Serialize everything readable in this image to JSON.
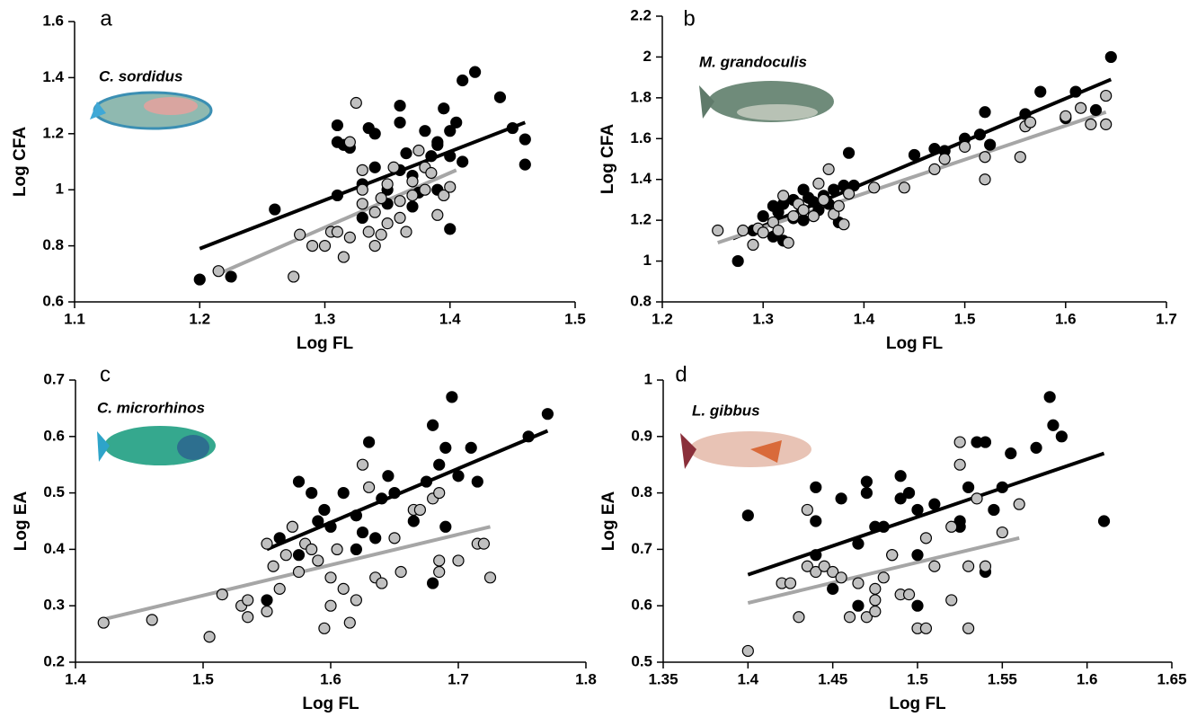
{
  "chart_data": [
    {
      "type": "scatter",
      "letter": "a",
      "species": "C. sordidus",
      "xlabel": "Log FL",
      "ylabel": "Log CFA",
      "xlim": [
        1.1,
        1.5
      ],
      "ylim": [
        0.6,
        1.6
      ],
      "xticks": [
        1.1,
        1.2,
        1.3,
        1.4,
        1.5
      ],
      "yticks": [
        0.6,
        0.8,
        1,
        1.2,
        1.4,
        1.6
      ],
      "series": [
        {
          "color": "#000000",
          "x": [
            1.2,
            1.225,
            1.26,
            1.31,
            1.31,
            1.315,
            1.32,
            1.31,
            1.33,
            1.34,
            1.335,
            1.35,
            1.35,
            1.36,
            1.36,
            1.365,
            1.37,
            1.375,
            1.38,
            1.385,
            1.39,
            1.39,
            1.395,
            1.4,
            1.4,
            1.405,
            1.41,
            1.42,
            1.4,
            1.41,
            1.44,
            1.45,
            1.46,
            1.46,
            1.34,
            1.37,
            1.39,
            1.33,
            1.36
          ],
          "values": [
            0.68,
            0.69,
            0.93,
            1.23,
            1.17,
            1.16,
            1.15,
            0.98,
            1.02,
            1.2,
            1.22,
            1.0,
            0.95,
            1.3,
            1.24,
            1.13,
            1.05,
            0.99,
            1.21,
            1.12,
            1.17,
            1.16,
            1.29,
            1.12,
            1.21,
            1.24,
            1.39,
            1.42,
            0.86,
            1.1,
            1.33,
            1.22,
            1.18,
            1.09,
            1.08,
            0.94,
            1.0,
            0.9,
            1.07
          ]
        },
        {
          "color": "#c0c0c0",
          "x": [
            1.215,
            1.275,
            1.28,
            1.29,
            1.3,
            1.305,
            1.31,
            1.315,
            1.32,
            1.325,
            1.32,
            1.33,
            1.33,
            1.335,
            1.34,
            1.34,
            1.345,
            1.35,
            1.35,
            1.355,
            1.36,
            1.36,
            1.37,
            1.37,
            1.375,
            1.38,
            1.38,
            1.385,
            1.39,
            1.395,
            1.4,
            1.33,
            1.345,
            1.365
          ],
          "values": [
            0.71,
            0.69,
            0.84,
            0.8,
            0.8,
            0.85,
            0.85,
            0.76,
            0.83,
            1.31,
            1.17,
            1.07,
            1.0,
            0.85,
            0.92,
            0.8,
            0.84,
            0.88,
            1.02,
            1.08,
            0.9,
            0.96,
            1.03,
            0.98,
            1.14,
            1.08,
            1.0,
            1.06,
            0.91,
            0.98,
            1.01,
            0.95,
            0.97,
            0.85
          ]
        }
      ],
      "lines": [
        {
          "color": "#000000",
          "x": [
            1.2,
            1.46
          ],
          "values": [
            0.79,
            1.24
          ]
        },
        {
          "color": "#a6a6a6",
          "x": [
            1.215,
            1.405
          ],
          "values": [
            0.7,
            1.07
          ]
        }
      ]
    },
    {
      "type": "scatter",
      "letter": "b",
      "species": "M. grandoculis",
      "xlabel": "Log FL",
      "ylabel": "Log CFA",
      "xlim": [
        1.2,
        1.7
      ],
      "ylim": [
        0.8,
        2.2
      ],
      "xticks": [
        1.2,
        1.3,
        1.4,
        1.5,
        1.6,
        1.7
      ],
      "yticks": [
        0.8,
        1,
        1.2,
        1.4,
        1.6,
        1.8,
        2,
        2.2
      ],
      "series": [
        {
          "color": "#000000",
          "x": [
            1.275,
            1.29,
            1.3,
            1.31,
            1.31,
            1.315,
            1.32,
            1.33,
            1.33,
            1.34,
            1.34,
            1.35,
            1.355,
            1.36,
            1.365,
            1.37,
            1.375,
            1.38,
            1.385,
            1.39,
            1.45,
            1.47,
            1.48,
            1.5,
            1.515,
            1.52,
            1.525,
            1.56,
            1.575,
            1.6,
            1.61,
            1.63,
            1.645,
            1.32,
            1.345
          ],
          "values": [
            1.0,
            1.15,
            1.22,
            1.27,
            1.12,
            1.24,
            1.28,
            1.21,
            1.3,
            1.35,
            1.2,
            1.29,
            1.25,
            1.32,
            1.28,
            1.35,
            1.19,
            1.37,
            1.53,
            1.37,
            1.52,
            1.55,
            1.54,
            1.6,
            1.62,
            1.73,
            1.57,
            1.72,
            1.83,
            1.7,
            1.83,
            1.74,
            2.0,
            1.1,
            1.31
          ]
        },
        {
          "color": "#c0c0c0",
          "x": [
            1.255,
            1.28,
            1.29,
            1.295,
            1.3,
            1.31,
            1.315,
            1.32,
            1.325,
            1.33,
            1.335,
            1.34,
            1.35,
            1.355,
            1.36,
            1.365,
            1.37,
            1.375,
            1.38,
            1.385,
            1.41,
            1.44,
            1.47,
            1.48,
            1.5,
            1.52,
            1.52,
            1.555,
            1.56,
            1.565,
            1.6,
            1.615,
            1.625,
            1.64,
            1.64
          ],
          "values": [
            1.15,
            1.15,
            1.08,
            1.16,
            1.14,
            1.19,
            1.15,
            1.32,
            1.09,
            1.22,
            1.28,
            1.25,
            1.22,
            1.38,
            1.3,
            1.45,
            1.23,
            1.27,
            1.18,
            1.33,
            1.36,
            1.36,
            1.45,
            1.5,
            1.56,
            1.4,
            1.51,
            1.51,
            1.66,
            1.68,
            1.71,
            1.75,
            1.67,
            1.67,
            1.81
          ]
        }
      ],
      "lines": [
        {
          "color": "#000000",
          "x": [
            1.27,
            1.645
          ],
          "values": [
            1.11,
            1.89
          ]
        },
        {
          "color": "#a6a6a6",
          "x": [
            1.255,
            1.64
          ],
          "values": [
            1.09,
            1.73
          ]
        }
      ]
    },
    {
      "type": "scatter",
      "letter": "c",
      "species": "C. microrhinos",
      "xlabel": "Log FL",
      "ylabel": "Log EA",
      "xlim": [
        1.4,
        1.8
      ],
      "ylim": [
        0.2,
        0.7
      ],
      "xticks": [
        1.4,
        1.5,
        1.6,
        1.7,
        1.8
      ],
      "yticks": [
        0.2,
        0.3,
        0.4,
        0.5,
        0.6,
        0.7
      ],
      "series": [
        {
          "color": "#000000",
          "x": [
            1.55,
            1.56,
            1.575,
            1.585,
            1.59,
            1.595,
            1.6,
            1.61,
            1.62,
            1.625,
            1.63,
            1.64,
            1.645,
            1.65,
            1.665,
            1.675,
            1.68,
            1.685,
            1.69,
            1.69,
            1.695,
            1.7,
            1.71,
            1.715,
            1.68,
            1.755,
            1.77,
            1.635,
            1.62,
            1.575
          ],
          "values": [
            0.31,
            0.42,
            0.52,
            0.5,
            0.45,
            0.47,
            0.44,
            0.5,
            0.46,
            0.43,
            0.59,
            0.49,
            0.53,
            0.5,
            0.45,
            0.52,
            0.62,
            0.55,
            0.58,
            0.44,
            0.67,
            0.53,
            0.58,
            0.52,
            0.34,
            0.6,
            0.64,
            0.42,
            0.4,
            0.39
          ]
        },
        {
          "color": "#c0c0c0",
          "x": [
            1.422,
            1.46,
            1.505,
            1.515,
            1.53,
            1.535,
            1.535,
            1.55,
            1.55,
            1.555,
            1.56,
            1.565,
            1.57,
            1.575,
            1.58,
            1.585,
            1.59,
            1.595,
            1.6,
            1.605,
            1.61,
            1.615,
            1.62,
            1.625,
            1.63,
            1.635,
            1.64,
            1.655,
            1.665,
            1.67,
            1.68,
            1.685,
            1.685,
            1.685,
            1.7,
            1.715,
            1.72,
            1.725,
            1.65,
            1.6
          ],
          "values": [
            0.27,
            0.275,
            0.245,
            0.32,
            0.3,
            0.31,
            0.28,
            0.29,
            0.41,
            0.37,
            0.33,
            0.39,
            0.44,
            0.36,
            0.41,
            0.4,
            0.38,
            0.26,
            0.35,
            0.4,
            0.33,
            0.27,
            0.31,
            0.55,
            0.51,
            0.35,
            0.34,
            0.36,
            0.47,
            0.47,
            0.49,
            0.5,
            0.38,
            0.36,
            0.38,
            0.41,
            0.41,
            0.35,
            0.42,
            0.3
          ]
        }
      ],
      "lines": [
        {
          "color": "#000000",
          "x": [
            1.55,
            1.77
          ],
          "values": [
            0.4,
            0.61
          ]
        },
        {
          "color": "#a6a6a6",
          "x": [
            1.42,
            1.725
          ],
          "values": [
            0.275,
            0.44
          ]
        }
      ]
    },
    {
      "type": "scatter",
      "letter": "d",
      "species": "L. gibbus",
      "xlabel": "Log FL",
      "ylabel": "Log EA",
      "xlim": [
        1.35,
        1.65
      ],
      "ylim": [
        0.5,
        1
      ],
      "xticks": [
        1.35,
        1.4,
        1.45,
        1.5,
        1.55,
        1.6,
        1.65
      ],
      "yticks": [
        0.5,
        0.6,
        0.7,
        0.8,
        0.9,
        1
      ],
      "series": [
        {
          "color": "#000000",
          "x": [
            1.4,
            1.44,
            1.44,
            1.44,
            1.455,
            1.465,
            1.47,
            1.47,
            1.475,
            1.48,
            1.485,
            1.49,
            1.49,
            1.495,
            1.5,
            1.5,
            1.51,
            1.525,
            1.525,
            1.53,
            1.535,
            1.54,
            1.54,
            1.545,
            1.55,
            1.555,
            1.57,
            1.578,
            1.58,
            1.585,
            1.61,
            1.45,
            1.465,
            1.5
          ],
          "values": [
            0.76,
            0.81,
            0.75,
            0.69,
            0.79,
            0.71,
            0.8,
            0.82,
            0.74,
            0.74,
            0.69,
            0.79,
            0.83,
            0.8,
            0.69,
            0.6,
            0.78,
            0.75,
            0.74,
            0.81,
            0.89,
            0.89,
            0.66,
            0.77,
            0.81,
            0.87,
            0.88,
            0.97,
            0.92,
            0.9,
            0.75,
            0.63,
            0.6,
            0.77
          ]
        },
        {
          "color": "#c0c0c0",
          "x": [
            1.4,
            1.42,
            1.425,
            1.43,
            1.435,
            1.435,
            1.44,
            1.445,
            1.45,
            1.455,
            1.46,
            1.465,
            1.47,
            1.475,
            1.475,
            1.48,
            1.485,
            1.49,
            1.495,
            1.5,
            1.505,
            1.505,
            1.51,
            1.52,
            1.52,
            1.525,
            1.525,
            1.53,
            1.53,
            1.535,
            1.54,
            1.55,
            1.56,
            1.475
          ],
          "values": [
            0.52,
            0.64,
            0.64,
            0.58,
            0.67,
            0.77,
            0.66,
            0.67,
            0.66,
            0.65,
            0.58,
            0.64,
            0.58,
            0.63,
            0.61,
            0.65,
            0.69,
            0.62,
            0.62,
            0.56,
            0.56,
            0.72,
            0.67,
            0.61,
            0.74,
            0.89,
            0.85,
            0.67,
            0.56,
            0.79,
            0.67,
            0.73,
            0.78,
            0.59
          ]
        }
      ],
      "lines": [
        {
          "color": "#000000",
          "x": [
            1.4,
            1.61
          ],
          "values": [
            0.655,
            0.87
          ]
        },
        {
          "color": "#a6a6a6",
          "x": [
            1.4,
            1.56
          ],
          "values": [
            0.605,
            0.72
          ]
        }
      ]
    }
  ]
}
